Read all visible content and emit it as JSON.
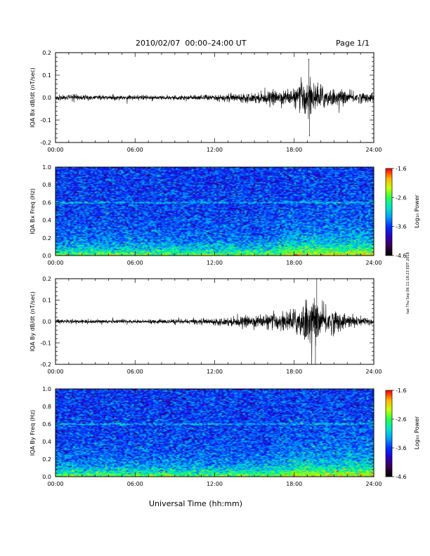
{
  "header": {
    "date_range": "2010/02/07  00:00–24:00 UT",
    "page": "Page 1/1"
  },
  "xaxis_label": "Universal Time (hh:mm)",
  "side_stamp": "kat Thu Sep 06 11:18:23 EDT 2018",
  "colors": {
    "trace": "#000000",
    "colormap": [
      "#000000",
      "#3c0050",
      "#2800c8",
      "#0032ff",
      "#00a0ff",
      "#00e6c8",
      "#28ff50",
      "#c8ff00",
      "#ffb400",
      "#ff0000"
    ]
  },
  "chart_data": [
    {
      "type": "line",
      "ylabel": "IQA Bx dB/dt (nT/sec)",
      "xlim": [
        0,
        24
      ],
      "ylim": [
        -0.2,
        0.2
      ],
      "x_ticks": [
        "00:00",
        "06:00",
        "12:00",
        "18:00",
        "24:00"
      ],
      "y_ticks": [
        "-0.2",
        "-0.1",
        "0.0",
        "0.1",
        "0.2"
      ],
      "envelope": {
        "hours": [
          0,
          2,
          4,
          6,
          8,
          10,
          12,
          14,
          15,
          16,
          17,
          18,
          18.5,
          19,
          19.5,
          20,
          21,
          22,
          23,
          24
        ],
        "amplitude": [
          0.014,
          0.012,
          0.011,
          0.011,
          0.011,
          0.012,
          0.015,
          0.02,
          0.024,
          0.03,
          0.035,
          0.04,
          0.07,
          0.1,
          0.07,
          0.06,
          0.04,
          0.03,
          0.025,
          0.022
        ]
      },
      "extremes": [
        {
          "x": 19.1,
          "y": 0.17
        },
        {
          "x": 19.15,
          "y": -0.17
        }
      ]
    },
    {
      "type": "heatmap",
      "ylabel": "IQA Bx Freq (Hz)",
      "xlim": [
        0,
        24
      ],
      "ylim": [
        0,
        1.0
      ],
      "x_ticks": [
        "00:00",
        "06:00",
        "12:00",
        "18:00",
        "24:00"
      ],
      "y_ticks": [
        "0.0",
        "0.2",
        "0.4",
        "0.6",
        "0.8",
        "1.0"
      ],
      "colorbar": {
        "label": "Log₁₀ Power",
        "ticks": [
          "-1.6",
          "-2.6",
          "-3.6",
          "-4.6"
        ],
        "range": [
          -4.6,
          -1.6
        ]
      },
      "features": {
        "line_freq_hz": 0.6,
        "active_start_hour": 16
      }
    },
    {
      "type": "line",
      "ylabel": "IQA By dB/dt (nT/sec)",
      "xlim": [
        0,
        24
      ],
      "ylim": [
        -0.2,
        0.2
      ],
      "x_ticks": [
        "00:00",
        "06:00",
        "12:00",
        "18:00",
        "24:00"
      ],
      "y_ticks": [
        "-0.2",
        "-0.1",
        "0.0",
        "0.1",
        "0.2"
      ],
      "envelope": {
        "hours": [
          0,
          2,
          4,
          6,
          8,
          10,
          12,
          14,
          15,
          16,
          17,
          18,
          18.5,
          19,
          19.5,
          20,
          21,
          22,
          23,
          24
        ],
        "amplitude": [
          0.012,
          0.01,
          0.009,
          0.009,
          0.01,
          0.012,
          0.016,
          0.025,
          0.03,
          0.035,
          0.045,
          0.06,
          0.09,
          0.12,
          0.1,
          0.08,
          0.06,
          0.035,
          0.025,
          0.02
        ]
      },
      "extremes": [
        {
          "x": 19.7,
          "y": 0.2
        },
        {
          "x": 19.6,
          "y": -0.2
        }
      ]
    },
    {
      "type": "heatmap",
      "ylabel": "IQA By Freq (Hz)",
      "xlim": [
        0,
        24
      ],
      "ylim": [
        0,
        1.0
      ],
      "x_ticks": [
        "00:00",
        "06:00",
        "12:00",
        "18:00",
        "24:00"
      ],
      "y_ticks": [
        "0.0",
        "0.2",
        "0.4",
        "0.6",
        "0.8",
        "1.0"
      ],
      "colorbar": {
        "label": "Log₁₀ Power",
        "ticks": [
          "-1.6",
          "-2.6",
          "-3.6",
          "-4.6"
        ],
        "range": [
          -4.6,
          -1.6
        ]
      },
      "features": {
        "line_freq_hz": 0.6,
        "active_start_hour": 16
      }
    }
  ]
}
